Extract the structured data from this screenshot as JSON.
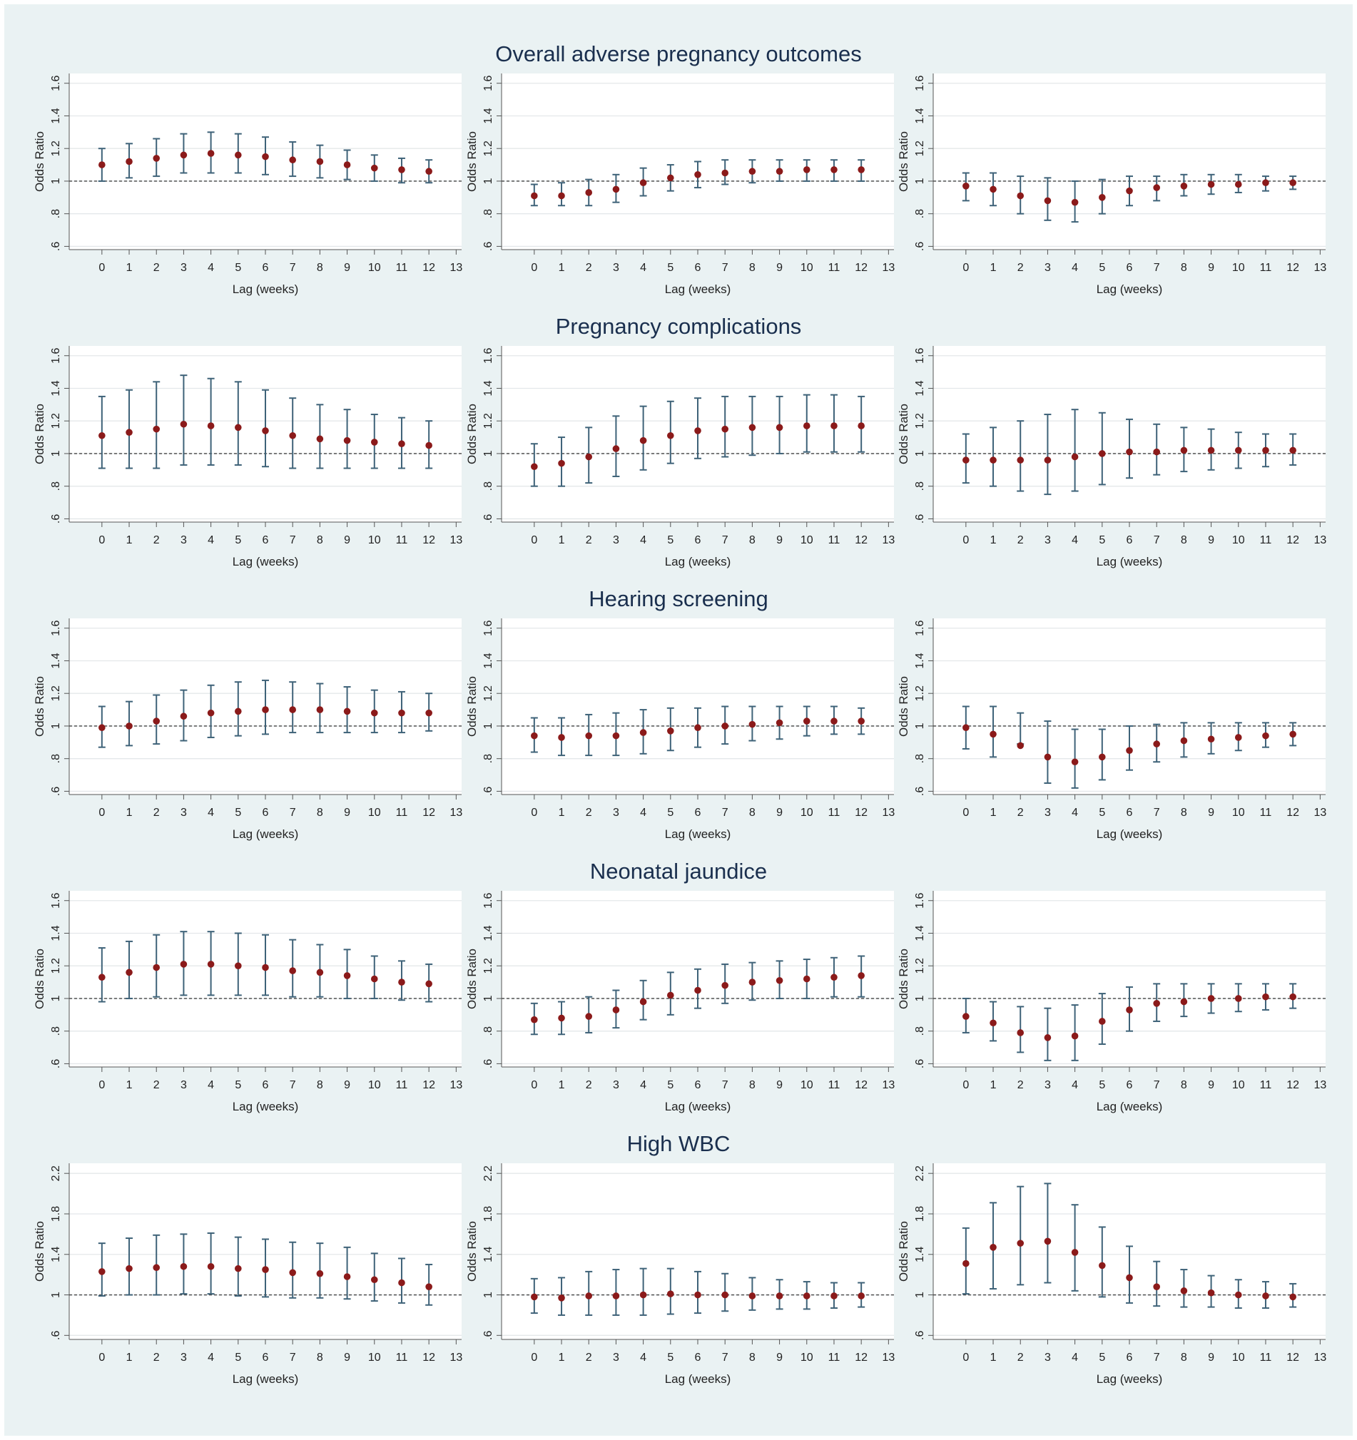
{
  "figure": {
    "colors": {
      "background": "#eaf2f3",
      "panel": "#ffffff",
      "point": "#8b1a1a",
      "errorbar": "#3e6278",
      "reference": "#444444",
      "grid": "#e4e8ea",
      "title": "#1a2f4e"
    }
  },
  "chart_data": [
    {
      "type": "scatter",
      "title": "Overall adverse pregnancy outcomes",
      "xlabel": "Lag (weeks)",
      "ylabel": "Odds Ratio",
      "x_ticks": [
        "0",
        "1",
        "2",
        "3",
        "4",
        "5",
        "6",
        "7",
        "8",
        "9",
        "10",
        "11",
        "12",
        "13"
      ],
      "y_ticks": [
        ".6",
        ".8",
        "1",
        "1.2",
        "1.4",
        "1.6"
      ],
      "ylim": [
        0.58,
        1.66
      ],
      "reference_line": 1,
      "grid": true,
      "panels": [
        {
          "x": [
            0,
            1,
            2,
            3,
            4,
            5,
            6,
            7,
            8,
            9,
            10,
            11,
            12
          ],
          "or": [
            1.1,
            1.12,
            1.14,
            1.16,
            1.17,
            1.16,
            1.15,
            1.13,
            1.12,
            1.1,
            1.08,
            1.07,
            1.06
          ],
          "lower": [
            1.0,
            1.02,
            1.03,
            1.05,
            1.05,
            1.05,
            1.04,
            1.03,
            1.02,
            1.01,
            1.0,
            0.99,
            0.99
          ],
          "upper": [
            1.2,
            1.23,
            1.26,
            1.29,
            1.3,
            1.29,
            1.27,
            1.24,
            1.22,
            1.19,
            1.16,
            1.14,
            1.13
          ]
        },
        {
          "x": [
            0,
            1,
            2,
            3,
            4,
            5,
            6,
            7,
            8,
            9,
            10,
            11,
            12
          ],
          "or": [
            0.91,
            0.91,
            0.93,
            0.95,
            0.99,
            1.02,
            1.04,
            1.05,
            1.06,
            1.06,
            1.07,
            1.07,
            1.07
          ],
          "lower": [
            0.85,
            0.85,
            0.85,
            0.87,
            0.91,
            0.94,
            0.96,
            0.98,
            0.99,
            1.0,
            1.0,
            1.0,
            1.0
          ],
          "upper": [
            0.98,
            0.99,
            1.01,
            1.04,
            1.08,
            1.1,
            1.12,
            1.13,
            1.13,
            1.13,
            1.13,
            1.13,
            1.13
          ]
        },
        {
          "x": [
            0,
            1,
            2,
            3,
            4,
            5,
            6,
            7,
            8,
            9,
            10,
            11,
            12
          ],
          "or": [
            0.97,
            0.95,
            0.91,
            0.88,
            0.87,
            0.9,
            0.94,
            0.96,
            0.97,
            0.98,
            0.98,
            0.99,
            0.99
          ],
          "lower": [
            0.88,
            0.85,
            0.8,
            0.76,
            0.75,
            0.8,
            0.85,
            0.88,
            0.91,
            0.92,
            0.93,
            0.94,
            0.95
          ],
          "upper": [
            1.05,
            1.05,
            1.03,
            1.02,
            1.0,
            1.01,
            1.03,
            1.03,
            1.04,
            1.04,
            1.04,
            1.03,
            1.03
          ]
        }
      ]
    },
    {
      "type": "scatter",
      "title": "Pregnancy complications",
      "xlabel": "Lag (weeks)",
      "ylabel": "Odds Ratio",
      "x_ticks": [
        "0",
        "1",
        "2",
        "3",
        "4",
        "5",
        "6",
        "7",
        "8",
        "9",
        "10",
        "11",
        "12",
        "13"
      ],
      "y_ticks": [
        ".6",
        ".8",
        "1",
        "1.2",
        "1.4",
        "1.6"
      ],
      "ylim": [
        0.58,
        1.66
      ],
      "reference_line": 1,
      "grid": true,
      "panels": [
        {
          "x": [
            0,
            1,
            2,
            3,
            4,
            5,
            6,
            7,
            8,
            9,
            10,
            11,
            12
          ],
          "or": [
            1.11,
            1.13,
            1.15,
            1.18,
            1.17,
            1.16,
            1.14,
            1.11,
            1.09,
            1.08,
            1.07,
            1.06,
            1.05
          ],
          "lower": [
            0.91,
            0.91,
            0.91,
            0.93,
            0.93,
            0.93,
            0.92,
            0.91,
            0.91,
            0.91,
            0.91,
            0.91,
            0.91
          ],
          "upper": [
            1.35,
            1.39,
            1.44,
            1.48,
            1.46,
            1.44,
            1.39,
            1.34,
            1.3,
            1.27,
            1.24,
            1.22,
            1.2
          ]
        },
        {
          "x": [
            0,
            1,
            2,
            3,
            4,
            5,
            6,
            7,
            8,
            9,
            10,
            11,
            12
          ],
          "or": [
            0.92,
            0.94,
            0.98,
            1.03,
            1.08,
            1.11,
            1.14,
            1.15,
            1.16,
            1.16,
            1.17,
            1.17,
            1.17
          ],
          "lower": [
            0.8,
            0.8,
            0.82,
            0.86,
            0.9,
            0.94,
            0.97,
            0.98,
            0.99,
            1.0,
            1.01,
            1.01,
            1.01
          ],
          "upper": [
            1.06,
            1.1,
            1.16,
            1.23,
            1.29,
            1.32,
            1.34,
            1.35,
            1.35,
            1.35,
            1.36,
            1.36,
            1.35
          ]
        },
        {
          "x": [
            0,
            1,
            2,
            3,
            4,
            5,
            6,
            7,
            8,
            9,
            10,
            11,
            12
          ],
          "or": [
            0.96,
            0.96,
            0.96,
            0.96,
            0.98,
            1.0,
            1.01,
            1.01,
            1.02,
            1.02,
            1.02,
            1.02,
            1.02
          ],
          "lower": [
            0.82,
            0.8,
            0.77,
            0.75,
            0.77,
            0.81,
            0.85,
            0.87,
            0.89,
            0.9,
            0.91,
            0.92,
            0.93
          ],
          "upper": [
            1.12,
            1.16,
            1.2,
            1.24,
            1.27,
            1.25,
            1.21,
            1.18,
            1.16,
            1.15,
            1.13,
            1.12,
            1.12
          ]
        }
      ]
    },
    {
      "type": "scatter",
      "title": "Hearing screening",
      "xlabel": "Lag (weeks)",
      "ylabel": "Odds Ratio",
      "x_ticks": [
        "0",
        "1",
        "2",
        "3",
        "4",
        "5",
        "6",
        "7",
        "8",
        "9",
        "10",
        "11",
        "12",
        "13"
      ],
      "y_ticks": [
        ".6",
        ".8",
        "1",
        "1.2",
        "1.4",
        "1.6"
      ],
      "ylim": [
        0.58,
        1.66
      ],
      "reference_line": 1,
      "grid": true,
      "panels": [
        {
          "x": [
            0,
            1,
            2,
            3,
            4,
            5,
            6,
            7,
            8,
            9,
            10,
            11,
            12
          ],
          "or": [
            0.99,
            1.0,
            1.03,
            1.06,
            1.08,
            1.09,
            1.1,
            1.1,
            1.1,
            1.09,
            1.08,
            1.08,
            1.08
          ],
          "lower": [
            0.87,
            0.88,
            0.89,
            0.91,
            0.93,
            0.94,
            0.95,
            0.96,
            0.96,
            0.96,
            0.96,
            0.96,
            0.97
          ],
          "upper": [
            1.12,
            1.15,
            1.19,
            1.22,
            1.25,
            1.27,
            1.28,
            1.27,
            1.26,
            1.24,
            1.22,
            1.21,
            1.2
          ]
        },
        {
          "x": [
            0,
            1,
            2,
            3,
            4,
            5,
            6,
            7,
            8,
            9,
            10,
            11,
            12
          ],
          "or": [
            0.94,
            0.93,
            0.94,
            0.94,
            0.96,
            0.97,
            0.99,
            1.0,
            1.01,
            1.02,
            1.03,
            1.03,
            1.03
          ],
          "lower": [
            0.84,
            0.82,
            0.82,
            0.82,
            0.83,
            0.85,
            0.87,
            0.89,
            0.91,
            0.92,
            0.94,
            0.95,
            0.95
          ],
          "upper": [
            1.05,
            1.05,
            1.07,
            1.08,
            1.1,
            1.11,
            1.11,
            1.12,
            1.12,
            1.12,
            1.12,
            1.12,
            1.11
          ]
        },
        {
          "x": [
            0,
            1,
            2,
            3,
            4,
            5,
            6,
            7,
            8,
            9,
            10,
            11,
            12
          ],
          "or": [
            0.99,
            0.95,
            0.88,
            0.81,
            0.78,
            0.81,
            0.85,
            0.89,
            0.91,
            0.92,
            0.93,
            0.94,
            0.95
          ],
          "lower": [
            0.86,
            0.81,
            0.89,
            0.65,
            0.62,
            0.67,
            0.73,
            0.78,
            0.81,
            0.83,
            0.85,
            0.87,
            0.88
          ],
          "upper": [
            1.12,
            1.12,
            1.08,
            1.03,
            0.98,
            0.98,
            1.0,
            1.01,
            1.02,
            1.02,
            1.02,
            1.02,
            1.02
          ]
        }
      ]
    },
    {
      "type": "scatter",
      "title": "Neonatal jaundice",
      "xlabel": "Lag (weeks)",
      "ylabel": "Odds Ratio",
      "x_ticks": [
        "0",
        "1",
        "2",
        "3",
        "4",
        "5",
        "6",
        "7",
        "8",
        "9",
        "10",
        "11",
        "12",
        "13"
      ],
      "y_ticks": [
        ".6",
        ".8",
        "1",
        "1.2",
        "1.4",
        "1.6"
      ],
      "ylim": [
        0.58,
        1.66
      ],
      "reference_line": 1,
      "grid": true,
      "panels": [
        {
          "x": [
            0,
            1,
            2,
            3,
            4,
            5,
            6,
            7,
            8,
            9,
            10,
            11,
            12
          ],
          "or": [
            1.13,
            1.16,
            1.19,
            1.21,
            1.21,
            1.2,
            1.19,
            1.17,
            1.16,
            1.14,
            1.12,
            1.1,
            1.09
          ],
          "lower": [
            0.98,
            1.0,
            1.01,
            1.02,
            1.02,
            1.02,
            1.02,
            1.01,
            1.01,
            1.0,
            1.0,
            0.99,
            0.98
          ],
          "upper": [
            1.31,
            1.35,
            1.39,
            1.41,
            1.41,
            1.4,
            1.39,
            1.36,
            1.33,
            1.3,
            1.26,
            1.23,
            1.21
          ]
        },
        {
          "x": [
            0,
            1,
            2,
            3,
            4,
            5,
            6,
            7,
            8,
            9,
            10,
            11,
            12
          ],
          "or": [
            0.87,
            0.88,
            0.89,
            0.93,
            0.98,
            1.02,
            1.05,
            1.08,
            1.1,
            1.11,
            1.12,
            1.13,
            1.14
          ],
          "lower": [
            0.78,
            0.78,
            0.79,
            0.82,
            0.87,
            0.9,
            0.94,
            0.97,
            0.99,
            1.0,
            1.0,
            1.01,
            1.01
          ],
          "upper": [
            0.97,
            0.98,
            1.01,
            1.05,
            1.11,
            1.16,
            1.18,
            1.21,
            1.22,
            1.23,
            1.24,
            1.25,
            1.26
          ]
        },
        {
          "x": [
            0,
            1,
            2,
            3,
            4,
            5,
            6,
            7,
            8,
            9,
            10,
            11,
            12
          ],
          "or": [
            0.89,
            0.85,
            0.79,
            0.76,
            0.77,
            0.86,
            0.93,
            0.97,
            0.98,
            1.0,
            1.0,
            1.01,
            1.01
          ],
          "lower": [
            0.79,
            0.74,
            0.67,
            0.62,
            0.62,
            0.72,
            0.8,
            0.86,
            0.89,
            0.91,
            0.92,
            0.93,
            0.94
          ],
          "upper": [
            1.0,
            0.98,
            0.95,
            0.94,
            0.96,
            1.03,
            1.07,
            1.09,
            1.09,
            1.09,
            1.09,
            1.09,
            1.09
          ]
        }
      ]
    },
    {
      "type": "scatter",
      "title": "High WBC",
      "xlabel": "Lag (weeks)",
      "ylabel": "Odds Ratio",
      "x_ticks": [
        "0",
        "1",
        "2",
        "3",
        "4",
        "5",
        "6",
        "7",
        "8",
        "9",
        "10",
        "11",
        "12",
        "13"
      ],
      "y_ticks": [
        ".6",
        "1",
        "1.4",
        "1.8",
        "2.2"
      ],
      "ylim": [
        0.56,
        2.3
      ],
      "reference_line": 1,
      "grid": true,
      "panels": [
        {
          "x": [
            0,
            1,
            2,
            3,
            4,
            5,
            6,
            7,
            8,
            9,
            10,
            11,
            12
          ],
          "or": [
            1.23,
            1.26,
            1.27,
            1.28,
            1.28,
            1.26,
            1.25,
            1.22,
            1.21,
            1.18,
            1.15,
            1.12,
            1.08
          ],
          "lower": [
            0.99,
            1.0,
            1.0,
            1.01,
            1.01,
            0.99,
            0.98,
            0.97,
            0.97,
            0.96,
            0.94,
            0.92,
            0.9
          ],
          "upper": [
            1.51,
            1.56,
            1.59,
            1.6,
            1.61,
            1.57,
            1.55,
            1.52,
            1.51,
            1.47,
            1.41,
            1.36,
            1.3
          ]
        },
        {
          "x": [
            0,
            1,
            2,
            3,
            4,
            5,
            6,
            7,
            8,
            9,
            10,
            11,
            12
          ],
          "or": [
            0.98,
            0.97,
            0.99,
            0.99,
            1.0,
            1.01,
            1.0,
            1.0,
            0.99,
            0.99,
            0.99,
            0.99,
            0.99
          ],
          "lower": [
            0.82,
            0.8,
            0.8,
            0.8,
            0.8,
            0.81,
            0.82,
            0.84,
            0.85,
            0.86,
            0.86,
            0.87,
            0.88
          ],
          "upper": [
            1.16,
            1.17,
            1.23,
            1.25,
            1.26,
            1.26,
            1.23,
            1.21,
            1.17,
            1.15,
            1.13,
            1.12,
            1.12
          ]
        },
        {
          "x": [
            0,
            1,
            2,
            3,
            4,
            5,
            6,
            7,
            8,
            9,
            10,
            11,
            12
          ],
          "or": [
            1.31,
            1.47,
            1.51,
            1.53,
            1.42,
            1.29,
            1.17,
            1.08,
            1.04,
            1.02,
            1.0,
            0.99,
            0.98
          ],
          "lower": [
            1.01,
            1.06,
            1.1,
            1.12,
            1.04,
            0.98,
            0.92,
            0.89,
            0.88,
            0.88,
            0.87,
            0.87,
            0.88
          ],
          "upper": [
            1.66,
            1.91,
            2.07,
            2.1,
            1.89,
            1.67,
            1.48,
            1.33,
            1.25,
            1.19,
            1.15,
            1.13,
            1.11
          ]
        }
      ]
    }
  ]
}
